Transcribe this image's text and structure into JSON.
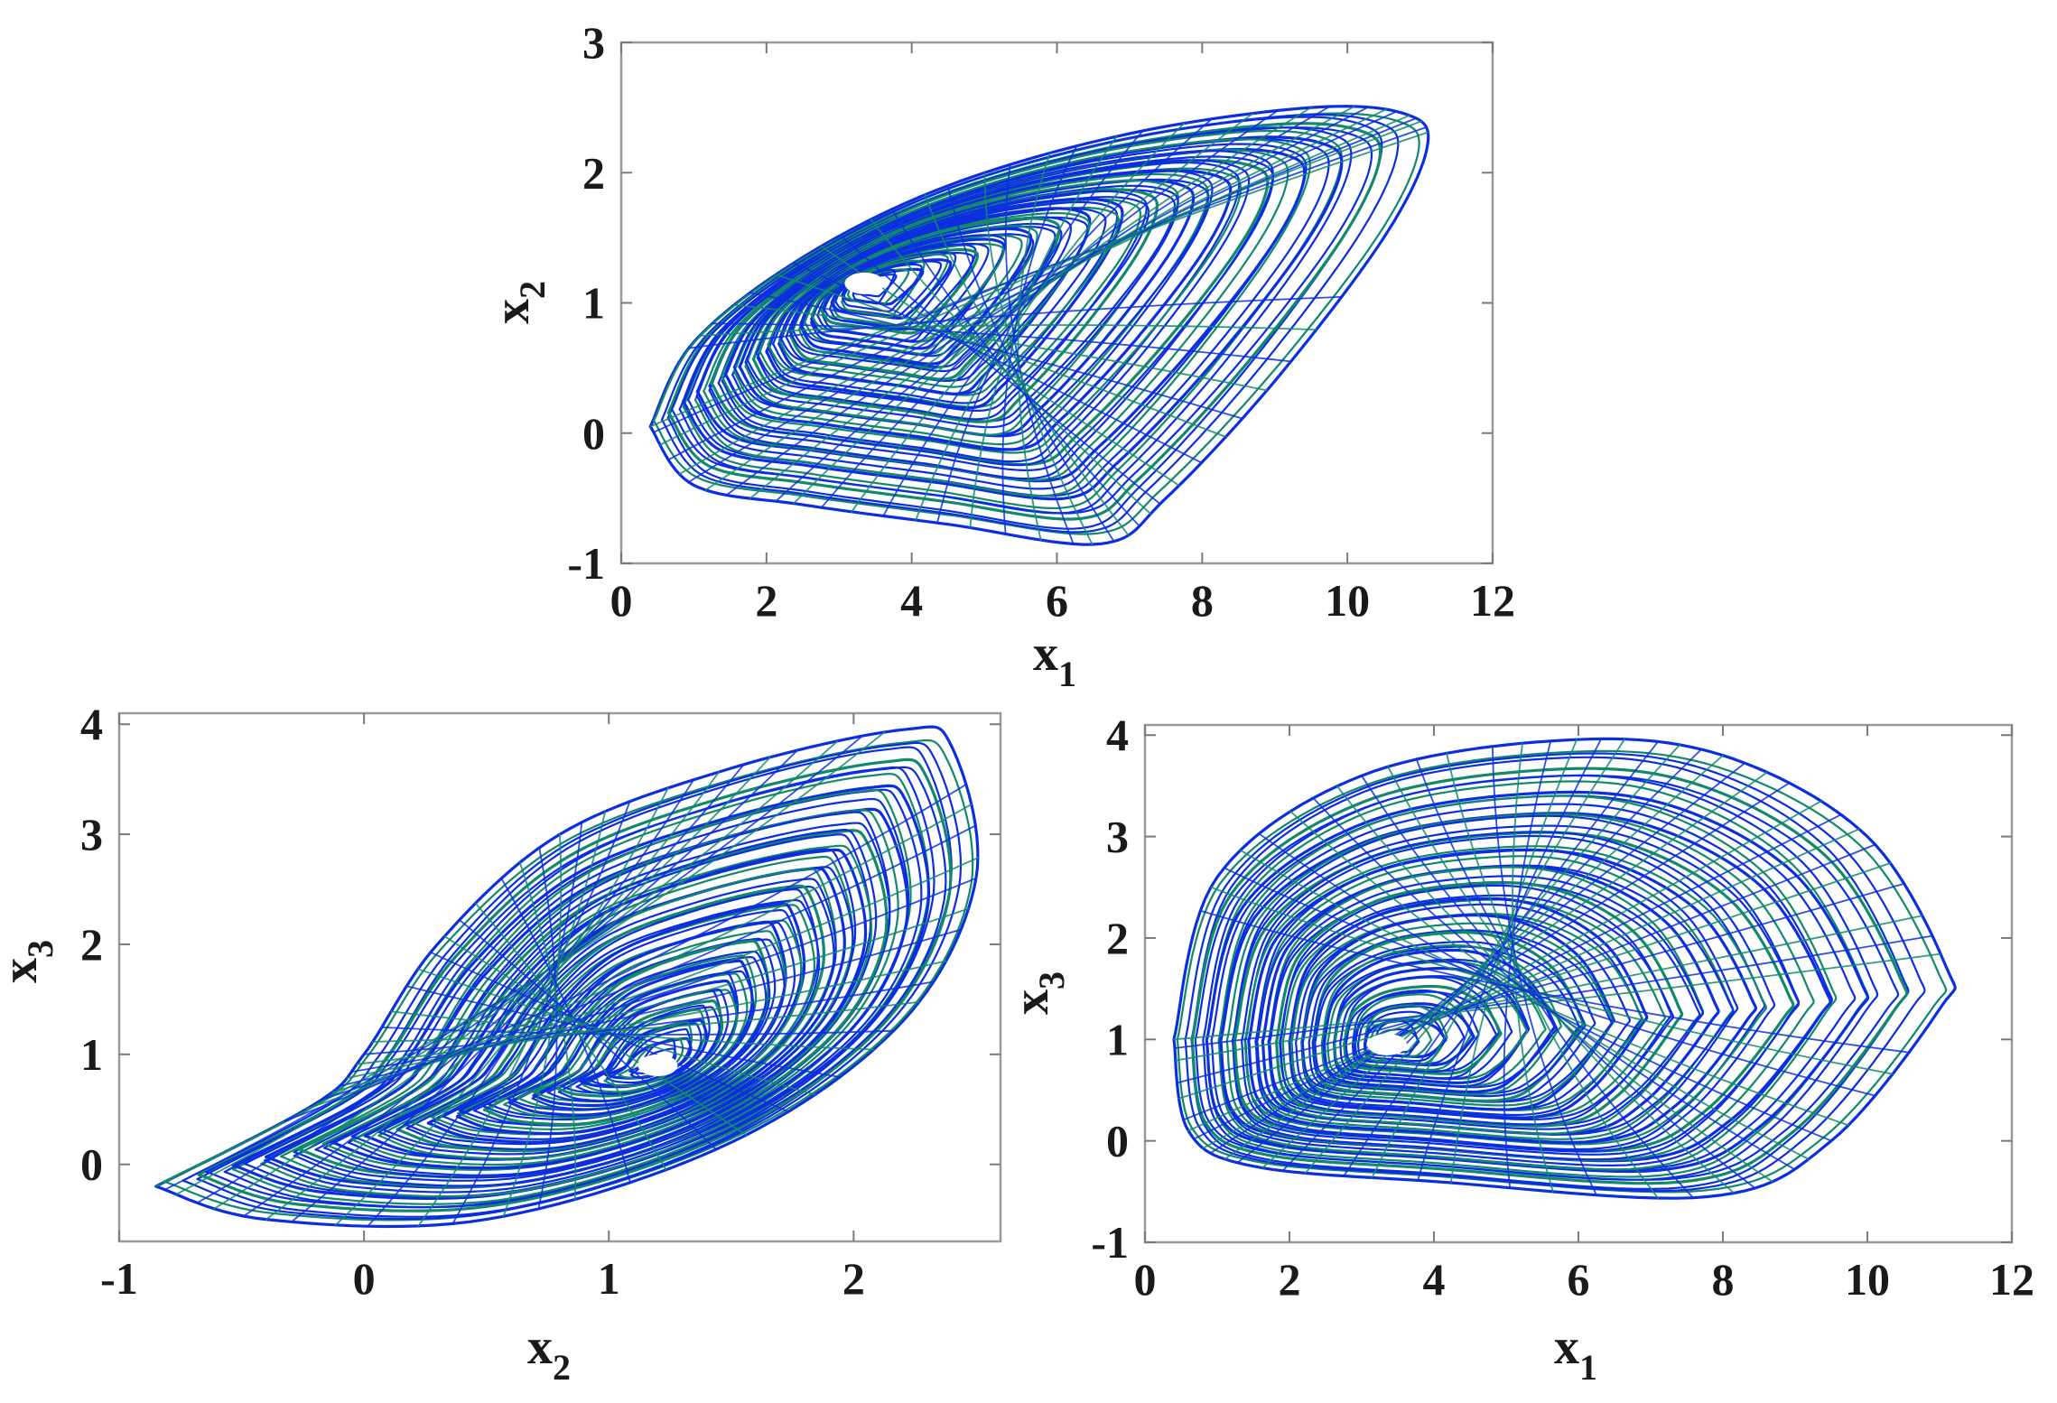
{
  "chart_data": [
    {
      "type": "line",
      "panel": "top",
      "description_of_content": "phase portrait",
      "xlabel": "x",
      "xlabel_sub": "1",
      "ylabel": "x",
      "ylabel_sub": "2",
      "xlim": [
        0,
        12
      ],
      "ylim": [
        -1,
        3
      ],
      "xticks": [
        "0",
        "2",
        "4",
        "6",
        "8",
        "10",
        "12"
      ],
      "yticks": [
        "-1",
        "0",
        "1",
        "2",
        "3"
      ],
      "grid": false,
      "equilibrium": {
        "x": 3.35,
        "y": 1.15
      },
      "outer_loop": [
        [
          0.4,
          0.05
        ],
        [
          1.0,
          -0.4
        ],
        [
          2.5,
          -0.55
        ],
        [
          4.5,
          -0.7
        ],
        [
          6.6,
          -0.85
        ],
        [
          7.5,
          -0.5
        ],
        [
          9.0,
          0.4
        ],
        [
          10.5,
          1.5
        ],
        [
          11.1,
          2.2
        ],
        [
          10.8,
          2.45
        ],
        [
          9.5,
          2.5
        ],
        [
          7.0,
          2.3
        ],
        [
          4.5,
          1.9
        ],
        [
          2.5,
          1.35
        ],
        [
          1.0,
          0.7
        ],
        [
          0.4,
          0.05
        ]
      ],
      "colors": {
        "primary": "#0b2fe0",
        "secondary": "#12896a"
      }
    },
    {
      "type": "line",
      "panel": "bottom-left",
      "xlabel": "x",
      "xlabel_sub": "2",
      "ylabel": "x",
      "ylabel_sub": "3",
      "xlim": [
        -1,
        2.6
      ],
      "ylim": [
        -0.7,
        4.1
      ],
      "xticks": [
        "-1",
        "0",
        "1",
        "2"
      ],
      "yticks": [
        "0",
        "1",
        "2",
        "3",
        "4"
      ],
      "grid": false,
      "equilibrium": {
        "x": 1.2,
        "y": 0.9
      },
      "outer_loop": [
        [
          -0.85,
          -0.2
        ],
        [
          -0.4,
          -0.5
        ],
        [
          0.5,
          -0.5
        ],
        [
          1.5,
          0.2
        ],
        [
          2.2,
          1.3
        ],
        [
          2.5,
          2.6
        ],
        [
          2.4,
          3.8
        ],
        [
          2.2,
          3.95
        ],
        [
          1.5,
          3.6
        ],
        [
          0.8,
          3.0
        ],
        [
          0.3,
          2.0
        ],
        [
          0.0,
          1.0
        ],
        [
          -0.2,
          0.55
        ],
        [
          -0.85,
          -0.2
        ]
      ],
      "colors": {
        "primary": "#0b2fe0",
        "secondary": "#12896a"
      }
    },
    {
      "type": "line",
      "panel": "bottom-right",
      "xlabel": "x",
      "xlabel_sub": "1",
      "ylabel": "x",
      "ylabel_sub": "3",
      "xlim": [
        0,
        12
      ],
      "ylim": [
        -1,
        4.1
      ],
      "xticks": [
        "0",
        "2",
        "4",
        "6",
        "8",
        "10",
        "12"
      ],
      "yticks": [
        "-1",
        "0",
        "1",
        "2",
        "3",
        "4"
      ],
      "grid": false,
      "equilibrium": {
        "x": 3.35,
        "y": 0.95
      },
      "outer_loop": [
        [
          0.4,
          1.0
        ],
        [
          0.6,
          0.1
        ],
        [
          1.5,
          -0.25
        ],
        [
          4.0,
          -0.4
        ],
        [
          7.8,
          -0.55
        ],
        [
          9.5,
          0.0
        ],
        [
          11.0,
          1.3
        ],
        [
          11.1,
          1.7
        ],
        [
          10.0,
          3.0
        ],
        [
          8.0,
          3.8
        ],
        [
          5.8,
          3.95
        ],
        [
          3.0,
          3.6
        ],
        [
          1.0,
          2.6
        ],
        [
          0.4,
          1.0
        ]
      ],
      "colors": {
        "primary": "#0b2fe0",
        "secondary": "#12896a"
      }
    }
  ]
}
